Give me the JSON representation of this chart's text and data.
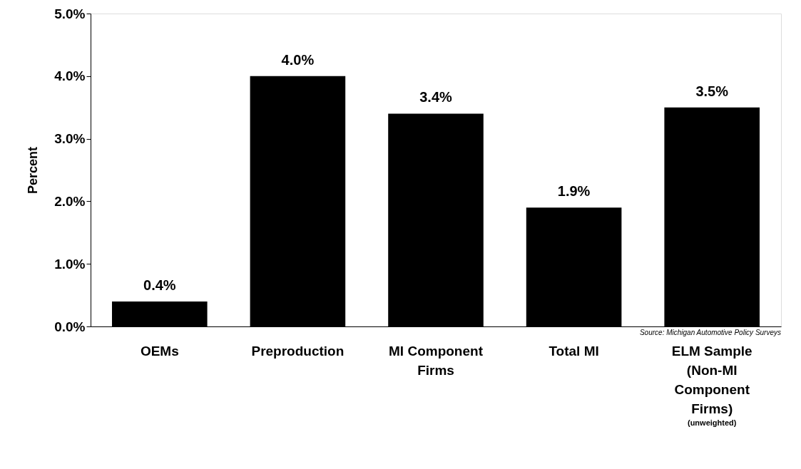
{
  "chart_data": {
    "type": "bar",
    "ylabel": "Percent",
    "categories": [
      "OEMs",
      "Preproduction",
      "MI Component Firms",
      "Total MI",
      "ELM Sample (Non-MI Component Firms)"
    ],
    "values": [
      0.4,
      4.0,
      3.4,
      1.9,
      3.5
    ],
    "value_labels": [
      "0.4%",
      "4.0%",
      "3.4%",
      "1.9%",
      "3.5%"
    ],
    "color": "#000000",
    "ylim": [
      0,
      5
    ],
    "yticks": [
      {
        "value": 0,
        "label": "0.0%"
      },
      {
        "value": 1,
        "label": "1.0%"
      },
      {
        "value": 2,
        "label": "2.0%"
      },
      {
        "value": 3,
        "label": "3.0%"
      },
      {
        "value": 4,
        "label": "4.0%"
      },
      {
        "value": 5,
        "label": "5.0%"
      }
    ],
    "grid": false,
    "annotations": [
      "Source: Michigan Automotive Policy Surveys",
      "(unweighted)"
    ]
  }
}
